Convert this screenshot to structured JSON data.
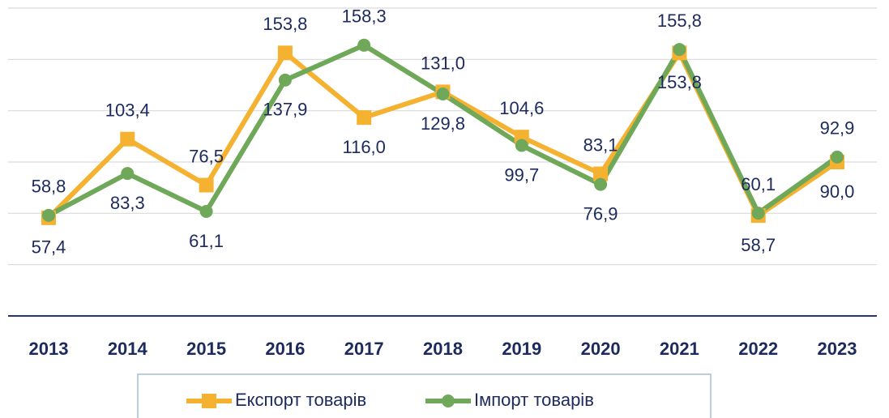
{
  "chart_data": {
    "type": "line",
    "categories": [
      "2013",
      "2014",
      "2015",
      "2016",
      "2017",
      "2018",
      "2019",
      "2020",
      "2021",
      "2022",
      "2023"
    ],
    "series": [
      {
        "name": "Експорт товарів",
        "color": "#f5b130",
        "marker": "square",
        "values": [
          57.4,
          103.4,
          76.5,
          153.8,
          116.0,
          131.0,
          104.6,
          83.1,
          153.8,
          58.7,
          90.0
        ],
        "value_labels": [
          "57,4",
          "103,4",
          "76,5",
          "153,8",
          "116,0",
          "131,0",
          "104,6",
          "83,1",
          "153,8",
          "58,7",
          "90,0"
        ]
      },
      {
        "name": "Імпорт товарів",
        "color": "#70a85a",
        "marker": "circle",
        "values": [
          58.8,
          83.3,
          61.1,
          137.9,
          158.3,
          129.8,
          99.7,
          76.9,
          155.8,
          60.1,
          92.9
        ],
        "value_labels": [
          "58,8",
          "83,3",
          "61,1",
          "137,9",
          "158,3",
          "129,8",
          "99,7",
          "76,9",
          "155,8",
          "60,1",
          "92,9"
        ]
      }
    ],
    "ylim": [
      0,
      180
    ],
    "yticks": [
      0,
      30,
      60,
      90,
      120,
      150,
      180
    ],
    "grid": true,
    "legend": "bottom"
  }
}
